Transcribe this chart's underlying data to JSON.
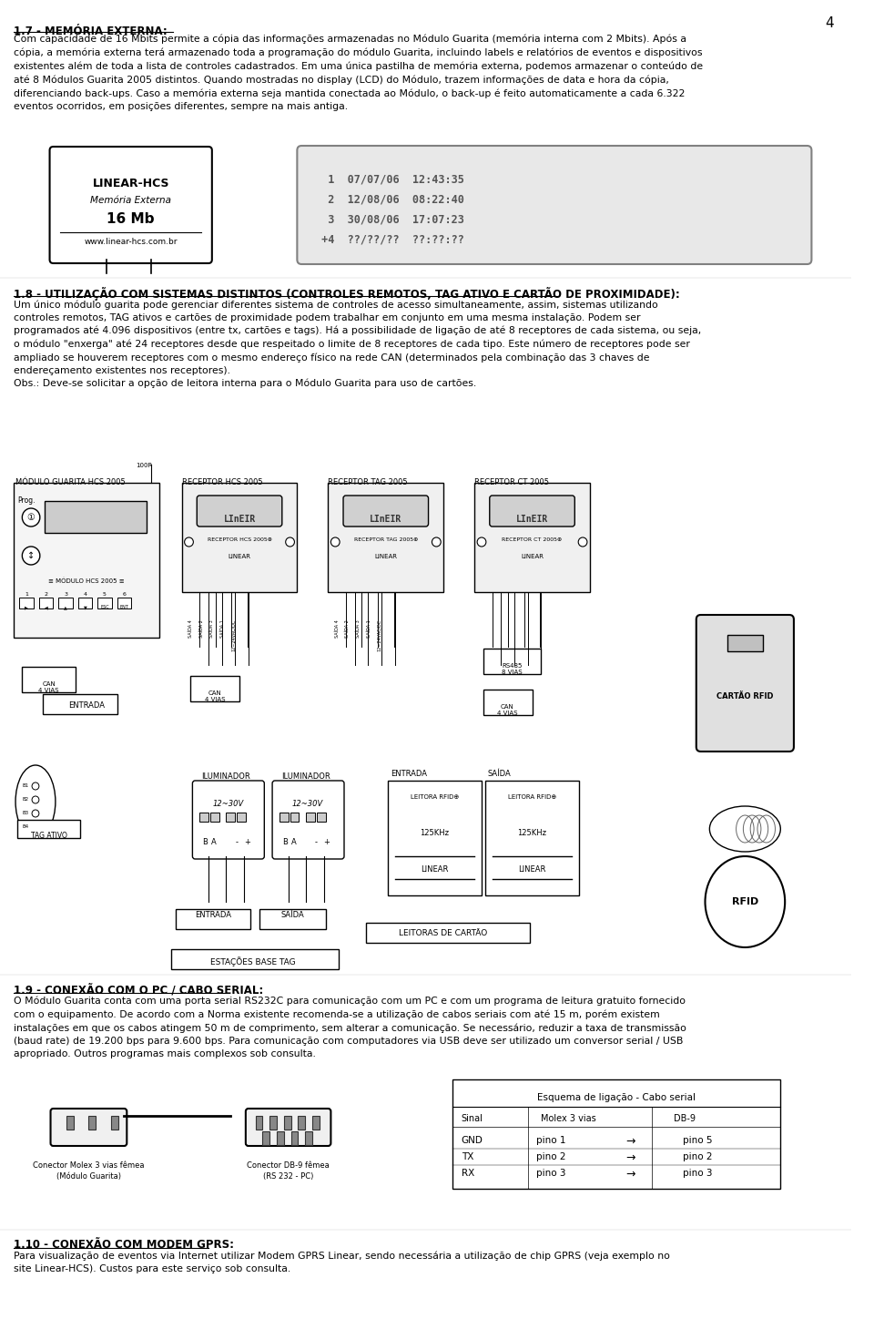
{
  "page_number": "4",
  "background_color": "#ffffff",
  "text_color": "#000000",
  "section_17_title": "1.7 - MEMÓRIA EXTERNA:",
  "section_17_body": "Com capacidade de 16 Mbits permite a cópia das informações armazenadas no Módulo Guarita (memória interna com 2 Mbits). Após a\ncópia, a memória externa terá armazenado toda a programação do módulo Guarita, incluindo labels e relatórios de eventos e dispositivos\nexistentes além de toda a lista de controles cadastrados. Em uma única pastilha de memória externa, podemos armazenar o conteúdo de\naté 8 Módulos Guarita 2005 distintos. Quando mostradas no display (LCD) do Módulo, trazem informações de data e hora da cópia,\ndiferenciando back-ups. Caso a memória externa seja mantida conectada ao Módulo, o back-up é feito automaticamente a cada 6.322\neventos ocorridos, em posições diferentes, sempre na mais antiga.",
  "section_18_title": "1.8 - UTILIZAÇÃO COM SISTEMAS DISTINTOS (CONTROLES REMOTOS, TAG ATIVO E CARTÃO DE PROXIMIDADE):",
  "section_18_body": "Um único módulo guarita pode gerenciar diferentes sistema de controles de acesso simultaneamente, assim, sistemas utilizando\ncontroles remotos, TAG ativos e cartões de proximidade podem trabalhar em conjunto em uma mesma instalação. Podem ser\nprogramados até 4.096 dispositivos (entre tx, cartões e tags). Há a possibilidade de ligação de até 8 receptores de cada sistema, ou seja,\no módulo \"enxerga\" até 24 receptores desde que respeitado o limite de 8 receptores de cada tipo. Este número de receptores pode ser\nampliado se houverem receptores com o mesmo endereço físico na rede CAN (determinados pela combinação das 3 chaves de\nendereçamento existentes nos receptores).\nObs.: Deve-se solicitar a opção de leitora interna para o Módulo Guarita para uso de cartões.",
  "section_19_title": "1.9 - CONEXÃO COM O PC / CABO SERIAL:",
  "section_19_body": "O Módulo Guarita conta com uma porta serial RS232C para comunicação com um PC e com um programa de leitura gratuito fornecido\ncom o equipamento. De acordo com a Norma existente recomenda-se a utilização de cabos seriais com até 15 m, porém existem\ninstalações em que os cabos atingem 50 m de comprimento, sem alterar a comunicação. Se necessário, reduzir a taxa de transmissão\n(baud rate) de 19.200 bps para 9.600 bps. Para comunicação com computadores via USB deve ser utilizado um conversor serial / USB\napropriado. Outros programas mais complexos sob consulta.",
  "section_110_title": "1.10 - CONEXÃO COM MODEM GPRS:",
  "section_110_body": "Para visualização de eventos via Internet utilizar Modem GPRS Linear, sendo necessária a utilização de chip GPRS (veja exemplo no\nsite Linear-HCS). Custos para este serviço sob consulta."
}
